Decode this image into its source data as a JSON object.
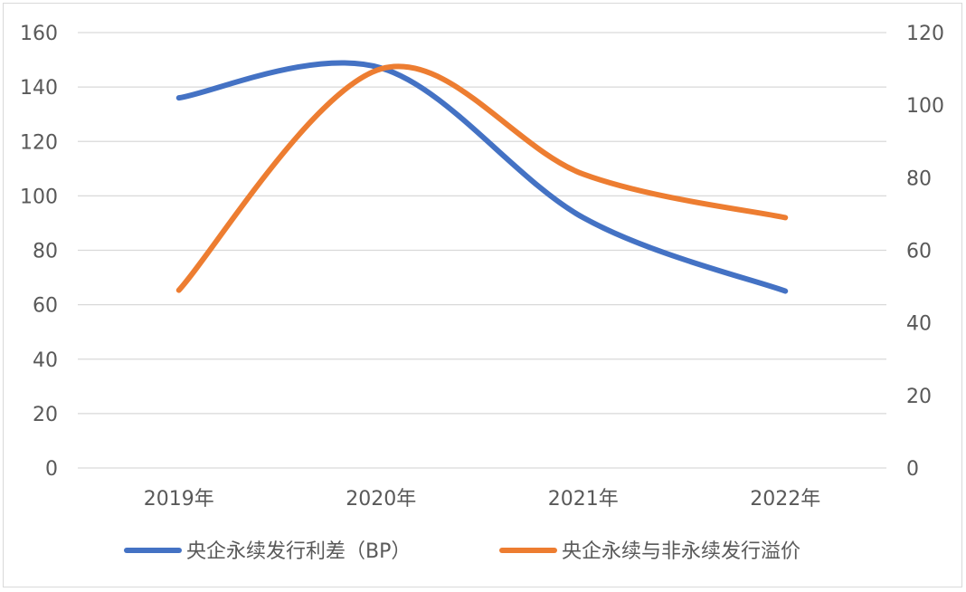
{
  "chart_data": {
    "type": "line",
    "categories": [
      "2019年",
      "2020年",
      "2021年",
      "2022年"
    ],
    "series": [
      {
        "name": "央企永续发行利差（BP）",
        "axis": "left",
        "color": "#4472c4",
        "values": [
          136,
          147,
          92,
          65
        ]
      },
      {
        "name": "央企永续与非永续发行溢价",
        "axis": "right",
        "color": "#ed7d31",
        "values": [
          49,
          110,
          81,
          69
        ]
      }
    ],
    "y_left": {
      "ylim": [
        0,
        160
      ],
      "ticks": [
        "0",
        "20",
        "40",
        "60",
        "80",
        "100",
        "120",
        "140",
        "160"
      ]
    },
    "y_right": {
      "ylim": [
        0,
        120
      ],
      "ticks": [
        "0",
        "20",
        "40",
        "60",
        "80",
        "100",
        "120"
      ]
    },
    "smooth": true,
    "grid": true,
    "legend_position": "bottom"
  }
}
